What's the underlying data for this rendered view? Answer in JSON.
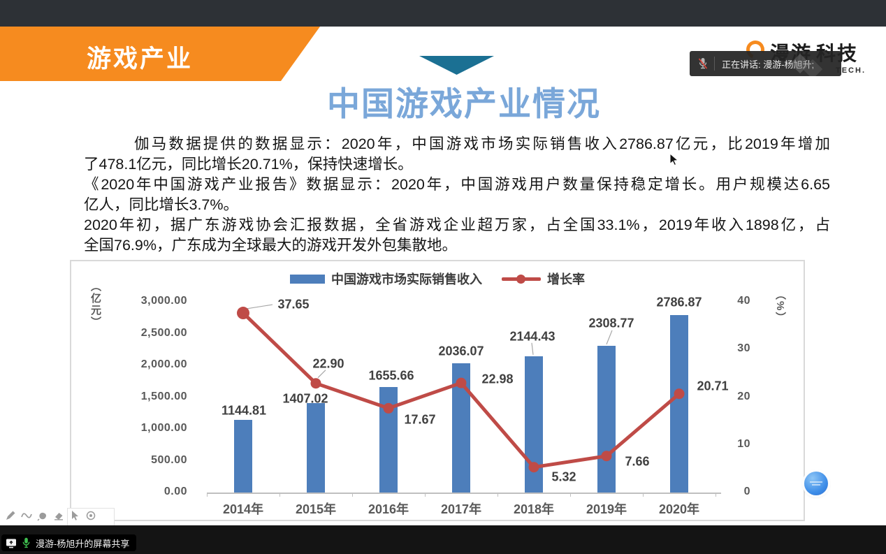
{
  "window": {
    "speaking_tooltip": {
      "text": "正在讲话: 漫游-杨旭升;"
    },
    "share_bar": {
      "text": "漫游-杨旭升的屏幕共享"
    }
  },
  "logo": {
    "part1": "漫游",
    "part2": "科技",
    "sub": "TECH.",
    "accent_color": "#f68b1f"
  },
  "slide": {
    "banner": {
      "title": "游戏产业",
      "color": "#f68b1f"
    },
    "title": {
      "text": "中国游戏产业情况",
      "color": "#7aa7d9"
    },
    "paragraph_lines": [
      {
        "text": "伽马数据提供的数据显示：2020年，中国游戏市场实际销售收入2786.87亿元，比2019年增加"
      },
      {
        "text": "了478.1亿元，同比增长20.71%，保持快速增长。"
      },
      {
        "text": "《2020年中国游戏产业报告》数据显示：2020年，中国游戏用户数量保持稳定增长。用户规模达6.65"
      },
      {
        "text": "亿人，同比增长3.7%。"
      },
      {
        "text": "2020年初，据广东游戏协会汇报数据，全省游戏企业超万家，占全国33.1%，2019年收入1898亿，占"
      },
      {
        "text": "全国76.9%，广东成为全球最大的游戏开发外包集散地。"
      }
    ]
  },
  "annotation_toolbar": {
    "tools": [
      "pen",
      "curve",
      "stamp",
      "eraser",
      "select",
      "laser-pointer"
    ]
  },
  "chart_data": {
    "type": "bar+line",
    "categories": [
      "2014年",
      "2015年",
      "2016年",
      "2017年",
      "2018年",
      "2019年",
      "2020年"
    ],
    "series": [
      {
        "name": "中国游戏市场实际销售收入",
        "type": "bar",
        "axis": "left",
        "color": "#4d7ebb",
        "values": [
          1144.81,
          1407.02,
          1655.66,
          2036.07,
          2144.43,
          2308.77,
          2786.87
        ]
      },
      {
        "name": "增长率",
        "type": "line",
        "axis": "right",
        "color": "#bf4b47",
        "values": [
          37.65,
          22.9,
          17.67,
          22.98,
          5.32,
          7.66,
          20.71
        ]
      }
    ],
    "left_axis": {
      "unit": "（亿元）",
      "min": 0,
      "max": 3000,
      "ticks": [
        {
          "label": "3,000.00",
          "value": 3000
        },
        {
          "label": "2,500.00",
          "value": 2500
        },
        {
          "label": "2,000.00",
          "value": 2000
        },
        {
          "label": "1,500.00",
          "value": 1500
        },
        {
          "label": "1,000.00",
          "value": 1000
        },
        {
          "label": "500.00",
          "value": 500
        },
        {
          "label": "0.00",
          "value": 0
        }
      ]
    },
    "right_axis": {
      "unit": "（%）",
      "min": 0,
      "max": 40,
      "ticks": [
        {
          "label": "40",
          "value": 40
        },
        {
          "label": "30",
          "value": 30
        },
        {
          "label": "20",
          "value": 20
        },
        {
          "label": "10",
          "value": 10
        },
        {
          "label": "0",
          "value": 0
        }
      ]
    },
    "legend_position": "top",
    "gridlines": false,
    "data_labels": true
  }
}
